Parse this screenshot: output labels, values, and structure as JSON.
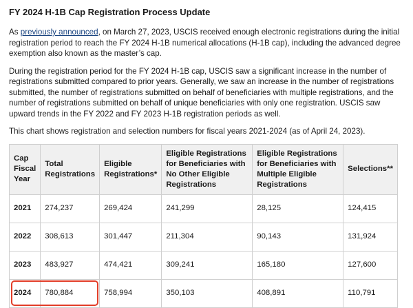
{
  "title": "FY 2024 H-1B Cap Registration Process Update",
  "intro": {
    "before_link": "As ",
    "link_text": "previously announced",
    "after_link": ", on March 27, 2023, USCIS received enough electronic registrations during the initial registration period to reach the FY 2024 H-1B numerical allocations (H-1B cap), including the advanced degree exemption also known as the master’s cap."
  },
  "paragraph2": "During the registration period for the FY 2024 H-1B cap, USCIS saw a significant increase in the number of registrations submitted compared to prior years. Generally, we saw an increase in the number of registrations submitted, the number of registrations submitted on behalf of beneficiaries with multiple registrations, and the number of registrations submitted on behalf of unique beneficiaries with only one registration. USCIS saw upward trends in the FY 2022 and FY 2023 H-1B registration periods as well.",
  "paragraph3": "This chart shows registration and selection numbers for fiscal years 2021-2024 (as of April 24, 2023).",
  "table": {
    "headers": [
      "Cap Fiscal Year",
      "Total Registrations",
      "Eligible Registrations*",
      "Eligible Registrations for Beneficiaries with No Other Eligible Registrations",
      "Eligible Registrations for Beneficiaries with Multiple Eligible Registrations",
      "Selections**"
    ],
    "rows": [
      [
        "2021",
        "274,237",
        "269,424",
        "241,299",
        "28,125",
        "124,415"
      ],
      [
        "2022",
        "308,613",
        "301,447",
        "211,304",
        "90,143",
        "131,924"
      ],
      [
        "2023",
        "483,927",
        "474,421",
        "309,241",
        "165,180",
        "127,600"
      ],
      [
        "2024",
        "780,884",
        "758,994",
        "350,103",
        "408,891",
        "110,791"
      ]
    ]
  },
  "colors": {
    "link": "#1a4480",
    "highlight": "#e23d28",
    "header_bg": "#f0f0f0"
  }
}
